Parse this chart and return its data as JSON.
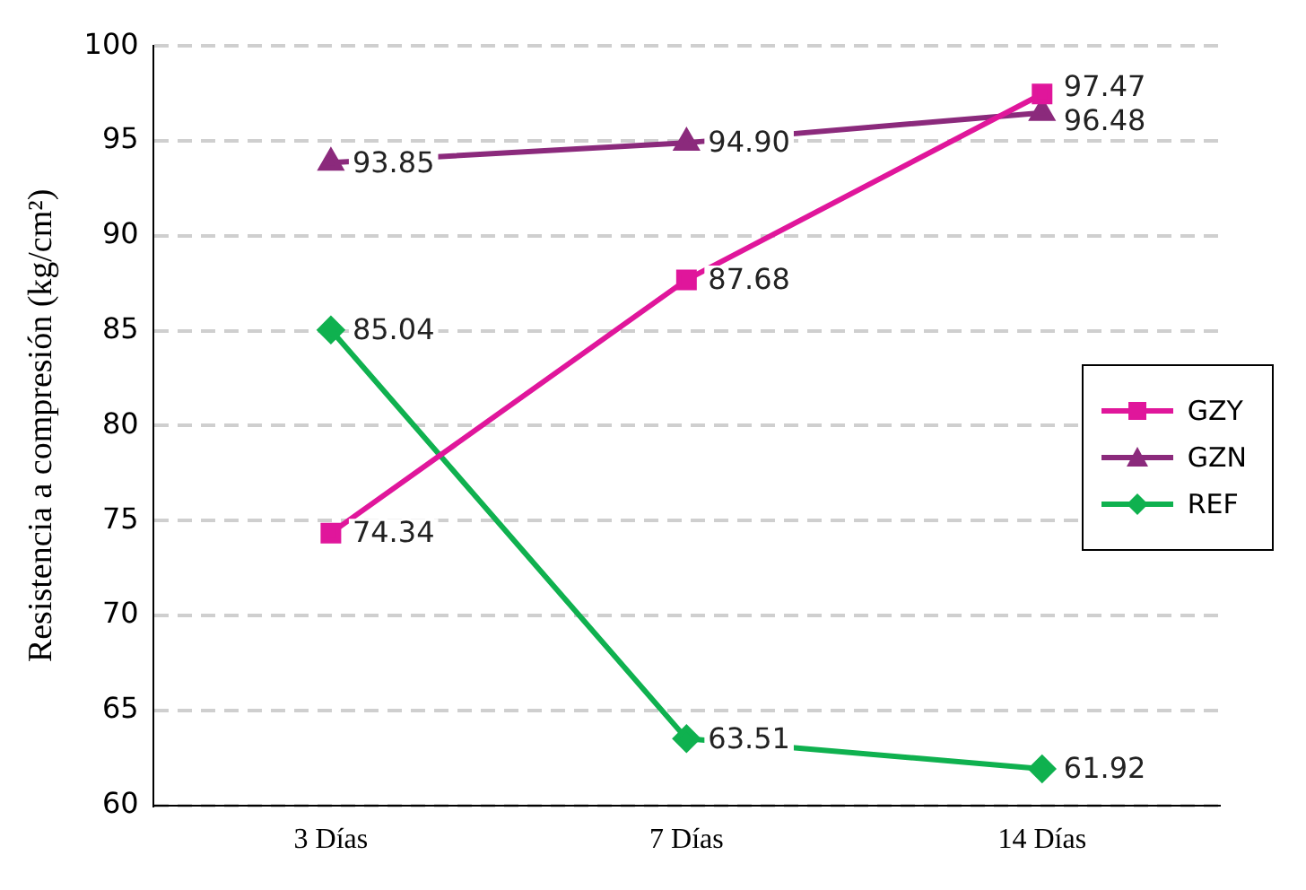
{
  "chart_data": {
    "type": "line",
    "ylabel": "Resistencia a compresión (kg/cm²)",
    "categories": [
      "3 Días",
      "7 Días",
      "14 Días"
    ],
    "series": [
      {
        "name": "GZY",
        "color": "#e0169b",
        "marker": "square",
        "values": [
          74.34,
          87.68,
          97.47
        ],
        "value_labels": [
          "74.34",
          "87.68",
          "97.47"
        ]
      },
      {
        "name": "GZN",
        "color": "#8b2a7c",
        "marker": "triangle",
        "values": [
          93.85,
          94.9,
          96.48
        ],
        "value_labels": [
          "93.85",
          "94.90",
          "96.48"
        ]
      },
      {
        "name": "REF",
        "color": "#0fb14f",
        "marker": "diamond",
        "values": [
          85.04,
          63.51,
          61.92
        ],
        "value_labels": [
          "85.04",
          "63.51",
          "61.92"
        ]
      }
    ],
    "ylim": [
      60,
      100
    ],
    "yticks": [
      60,
      65,
      70,
      75,
      80,
      85,
      90,
      95,
      100
    ],
    "grid": "y",
    "legend": "right",
    "line_style": "solid"
  }
}
